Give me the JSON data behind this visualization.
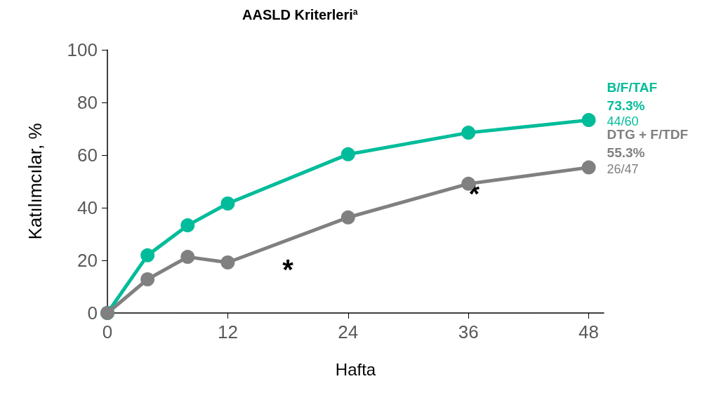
{
  "chart_data": {
    "type": "line",
    "title": "AASLD Kriterleri$^{a}$",
    "xlabel": "Hafta",
    "ylabel": "Katılımcılar, %",
    "x": [
      0,
      4,
      8,
      12,
      24,
      36,
      48
    ],
    "series": [
      {
        "name": "B/F/TAF",
        "color": "#00bc9a",
        "values": [
          0,
          21.9,
          33.3,
          41.6,
          60.3,
          68.5,
          73.3
        ],
        "value_labels": [
          null,
          null,
          null,
          null,
          null,
          null,
          "73.3%"
        ]
      },
      {
        "name": "DTG + F/TDF",
        "color": "#808080",
        "values": [
          0,
          12.8,
          21.3,
          19.2,
          36.3,
          49.1,
          55.3
        ],
        "value_labels": [
          null,
          null,
          null,
          null,
          null,
          null,
          "55.3%"
        ]
      }
    ],
    "annotations": [
      {
        "text": "44/60",
        "x": 48,
        "y": 73.3
      },
      {
        "text": "26/47",
        "x": 48,
        "y": 55.3
      },
      "*",
      "*"
    ],
    "xlim": [
      0,
      49.5
    ],
    "xticks": [
      0,
      12,
      24,
      36,
      48
    ],
    "ylim": [
      0,
      100
    ],
    "yticks": [
      0,
      20,
      40,
      60,
      80,
      100
    ],
    "grid": false,
    "legend": false,
    "marker": "circle",
    "line_style": "solid"
  }
}
